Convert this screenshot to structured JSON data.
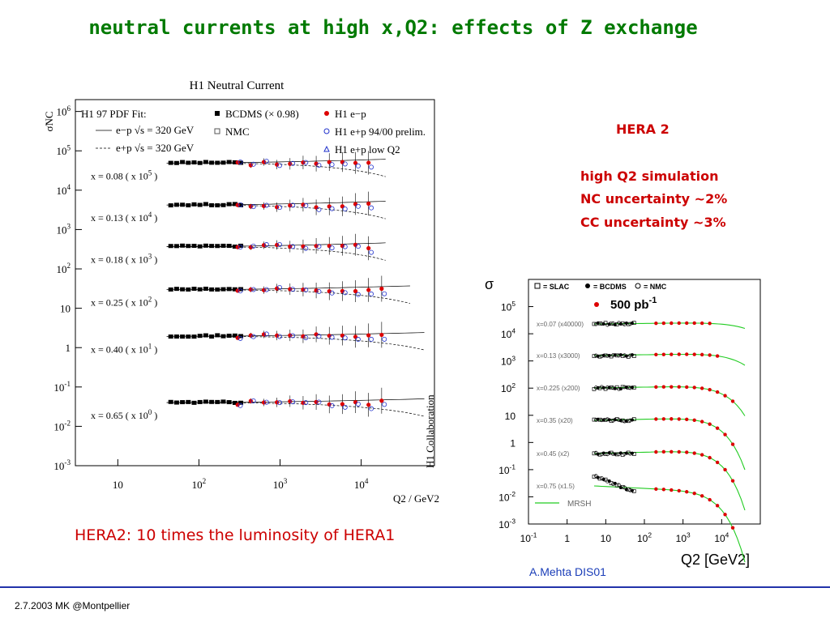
{
  "slide": {
    "title": "neutral currents at high x,Q2: effects of Z exchange",
    "hera_title": "HERA 2",
    "sim_lines": [
      "high Q2 simulation",
      "NC uncertainty ~2%",
      "CC uncertainty ~3%"
    ],
    "luminosity_note": "HERA2: 10 times the luminosity of HERA1",
    "credit": "A.Mehta DIS01",
    "footer": "2.7.2003 MK @Montpellier"
  },
  "chart_data": [
    {
      "type": "scatter",
      "title": "H1 Neutral Current",
      "ylabel": "σ̃NC",
      "xlabel": "Q2 / GeV2",
      "xscale": "log",
      "yscale": "log",
      "xlim": [
        3,
        80000
      ],
      "ylim": [
        0.001,
        2000000
      ],
      "x_ticks": [
        "10",
        "10^2",
        "10^3",
        "10^4"
      ],
      "y_ticks": [
        "10^6",
        "10^5",
        "10^4",
        "10^3",
        "10^2",
        "10",
        "1",
        "10^-1",
        "10^-2",
        "10^-3"
      ],
      "collaboration_label": "H1 Collaboration",
      "fit_label": "H1 97 PDF Fit:",
      "legend": [
        {
          "name": "e−p √s = 320 GeV",
          "style": "solid line"
        },
        {
          "name": "e+p √s = 320 GeV",
          "style": "dashed line"
        },
        {
          "name": "BCDMS (× 0.98)",
          "marker": "filled square",
          "color": "#000000"
        },
        {
          "name": "NMC",
          "marker": "open square",
          "color": "#555555"
        },
        {
          "name": "H1 e−p",
          "marker": "filled circle",
          "color": "#dd0000"
        },
        {
          "name": "H1 e+p 94/00 prelim.",
          "marker": "open circle",
          "color": "#2233cc"
        },
        {
          "name": "H1 e+p low Q2",
          "marker": "open triangle",
          "color": "#2233cc"
        }
      ],
      "series": [
        {
          "label": "x = 0.08 ( x 10^5 )",
          "scale": 100000,
          "q2_range": [
            40,
            10000
          ],
          "value_range": [
            40000,
            60000
          ]
        },
        {
          "label": "x = 0.13 ( x 10^4 )",
          "scale": 10000,
          "q2_range": [
            40,
            10000
          ],
          "value_range": [
            3500,
            5000
          ]
        },
        {
          "label": "x = 0.18 ( x 10^3 )",
          "scale": 1000,
          "q2_range": [
            40,
            10000
          ],
          "value_range": [
            300,
            450
          ]
        },
        {
          "label": "x = 0.25 ( x 10^2 )",
          "scale": 100,
          "q2_range": [
            40,
            20000
          ],
          "value_range": [
            25,
            35
          ]
        },
        {
          "label": "x = 0.40 ( x 10^1 )",
          "scale": 10,
          "q2_range": [
            40,
            30000
          ],
          "value_range": [
            1.5,
            2.5
          ]
        },
        {
          "label": "x = 0.65 ( x 10^0 )",
          "scale": 1,
          "q2_range": [
            40,
            30000
          ],
          "value_range": [
            0.02,
            0.08
          ]
        }
      ]
    },
    {
      "type": "scatter",
      "ylabel": "σ",
      "xlabel": "Q2 [GeV2]",
      "xscale": "log",
      "yscale": "log",
      "xlim": [
        0.1,
        100000
      ],
      "ylim": [
        0.001,
        1000000
      ],
      "x_ticks": [
        "10^-1",
        "1",
        "10",
        "10^2",
        "10^3",
        "10^4"
      ],
      "y_ticks": [
        "10^5",
        "10^4",
        "10^3",
        "10^2",
        "10",
        "1",
        "10^-1",
        "10^-2",
        "10^-3"
      ],
      "legend_top": [
        "= SLAC",
        "= BCDMS",
        "= NMC"
      ],
      "sim_label": "500 pb-1",
      "curve_label": "MRSH",
      "series": [
        {
          "label": "x=0.07 (x40000)"
        },
        {
          "label": "x=0.13 (x3000)"
        },
        {
          "label": "x=0.225 (x200)"
        },
        {
          "label": "x=0.35 (x20)"
        },
        {
          "label": "x=0.45 (x2)"
        },
        {
          "label": "x=0.75 (x1.5)"
        }
      ]
    }
  ]
}
